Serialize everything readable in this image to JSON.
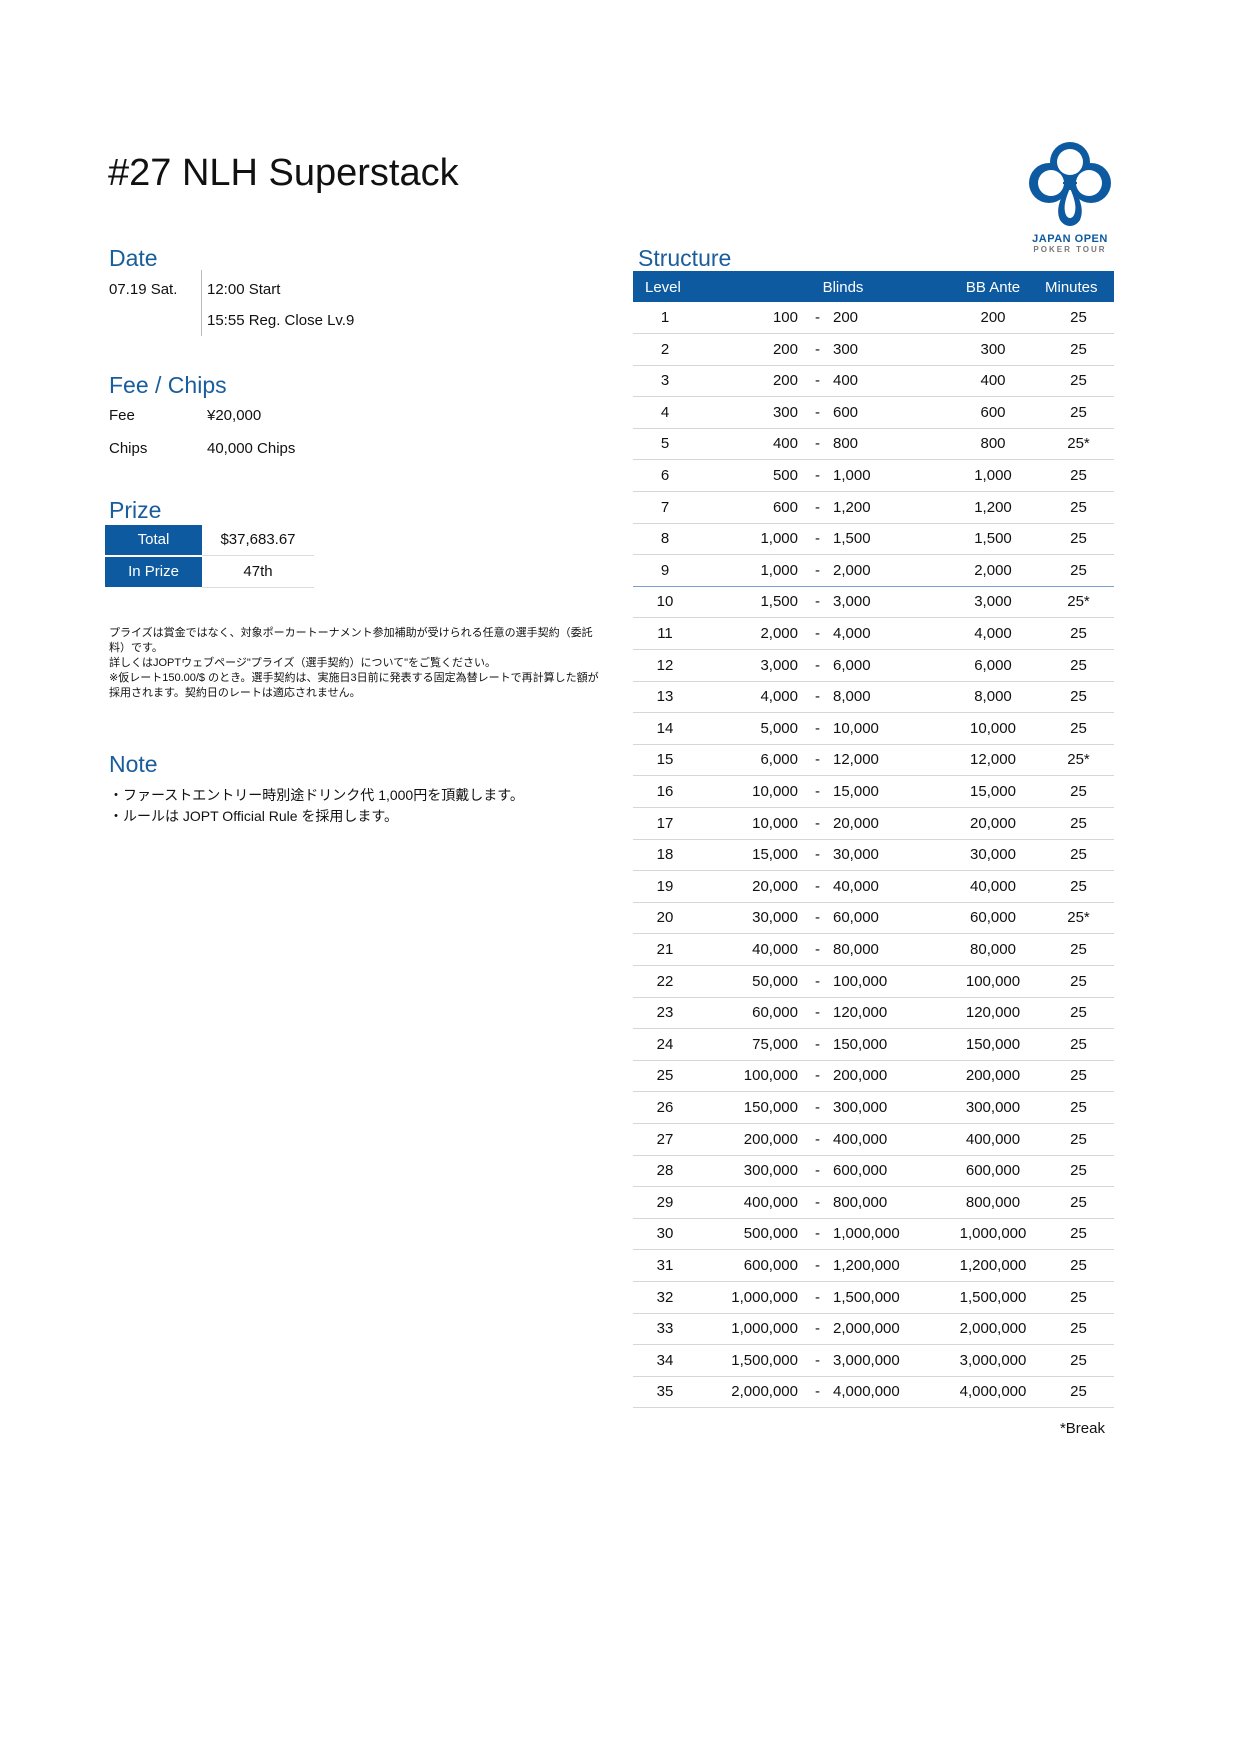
{
  "title": "#27 NLH Superstack",
  "logo": {
    "line1": "JAPAN OPEN",
    "line2": "POKER TOUR",
    "color": "#0d5aa0"
  },
  "date": {
    "heading": "Date",
    "day": "07.19 Sat.",
    "start": "12:00 Start",
    "reg_close": "15:55 Reg. Close Lv.9"
  },
  "fee_chips": {
    "heading": "Fee / Chips",
    "fee_label": "Fee",
    "fee_value": "¥20,000",
    "chips_label": "Chips",
    "chips_value": "40,000 Chips"
  },
  "prize": {
    "heading": "Prize",
    "total_label": "Total",
    "total_value": "$37,683.67",
    "inprize_label": "In Prize",
    "inprize_value": "47th"
  },
  "disclaimer": [
    "プライズは賞金ではなく、対象ポーカートーナメント参加補助が受けられる任意の選手契約（委託料）です。",
    "詳しくはJOPTウェブページ\"プライズ（選手契約）について\"をご覧ください。",
    "※仮レート150.00/$ のとき。選手契約は、実施日3日前に発表する固定為替レートで再計算した額が採用されます。契約日のレートは適応されません。"
  ],
  "note": {
    "heading": "Note",
    "lines": [
      "・ファーストエントリー時別途ドリンク代 1,000円を頂戴します。",
      "・ルールは JOPT Official Rule を採用します。"
    ]
  },
  "structure": {
    "heading": "Structure",
    "columns": {
      "level": "Level",
      "blinds": "Blinds",
      "ante": "BB Ante",
      "minutes": "Minutes"
    },
    "rows": [
      [
        "1",
        "100",
        "200",
        "200",
        "25"
      ],
      [
        "2",
        "200",
        "300",
        "300",
        "25"
      ],
      [
        "3",
        "200",
        "400",
        "400",
        "25"
      ],
      [
        "4",
        "300",
        "600",
        "600",
        "25"
      ],
      [
        "5",
        "400",
        "800",
        "800",
        "25*"
      ],
      [
        "6",
        "500",
        "1,000",
        "1,000",
        "25"
      ],
      [
        "7",
        "600",
        "1,200",
        "1,200",
        "25"
      ],
      [
        "8",
        "1,000",
        "1,500",
        "1,500",
        "25"
      ],
      [
        "9",
        "1,000",
        "2,000",
        "2,000",
        "25"
      ],
      [
        "10",
        "1,500",
        "3,000",
        "3,000",
        "25*"
      ],
      [
        "11",
        "2,000",
        "4,000",
        "4,000",
        "25"
      ],
      [
        "12",
        "3,000",
        "6,000",
        "6,000",
        "25"
      ],
      [
        "13",
        "4,000",
        "8,000",
        "8,000",
        "25"
      ],
      [
        "14",
        "5,000",
        "10,000",
        "10,000",
        "25"
      ],
      [
        "15",
        "6,000",
        "12,000",
        "12,000",
        "25*"
      ],
      [
        "16",
        "10,000",
        "15,000",
        "15,000",
        "25"
      ],
      [
        "17",
        "10,000",
        "20,000",
        "20,000",
        "25"
      ],
      [
        "18",
        "15,000",
        "30,000",
        "30,000",
        "25"
      ],
      [
        "19",
        "20,000",
        "40,000",
        "40,000",
        "25"
      ],
      [
        "20",
        "30,000",
        "60,000",
        "60,000",
        "25*"
      ],
      [
        "21",
        "40,000",
        "80,000",
        "80,000",
        "25"
      ],
      [
        "22",
        "50,000",
        "100,000",
        "100,000",
        "25"
      ],
      [
        "23",
        "60,000",
        "120,000",
        "120,000",
        "25"
      ],
      [
        "24",
        "75,000",
        "150,000",
        "150,000",
        "25"
      ],
      [
        "25",
        "100,000",
        "200,000",
        "200,000",
        "25"
      ],
      [
        "26",
        "150,000",
        "300,000",
        "300,000",
        "25"
      ],
      [
        "27",
        "200,000",
        "400,000",
        "400,000",
        "25"
      ],
      [
        "28",
        "300,000",
        "600,000",
        "600,000",
        "25"
      ],
      [
        "29",
        "400,000",
        "800,000",
        "800,000",
        "25"
      ],
      [
        "30",
        "500,000",
        "1,000,000",
        "1,000,000",
        "25"
      ],
      [
        "31",
        "600,000",
        "1,200,000",
        "1,200,000",
        "25"
      ],
      [
        "32",
        "1,000,000",
        "1,500,000",
        "1,500,000",
        "25"
      ],
      [
        "33",
        "1,000,000",
        "2,000,000",
        "2,000,000",
        "25"
      ],
      [
        "34",
        "1,500,000",
        "3,000,000",
        "3,000,000",
        "25"
      ],
      [
        "35",
        "2,000,000",
        "4,000,000",
        "4,000,000",
        "25"
      ]
    ],
    "blind_separator": "-",
    "footnote": "*Break"
  }
}
